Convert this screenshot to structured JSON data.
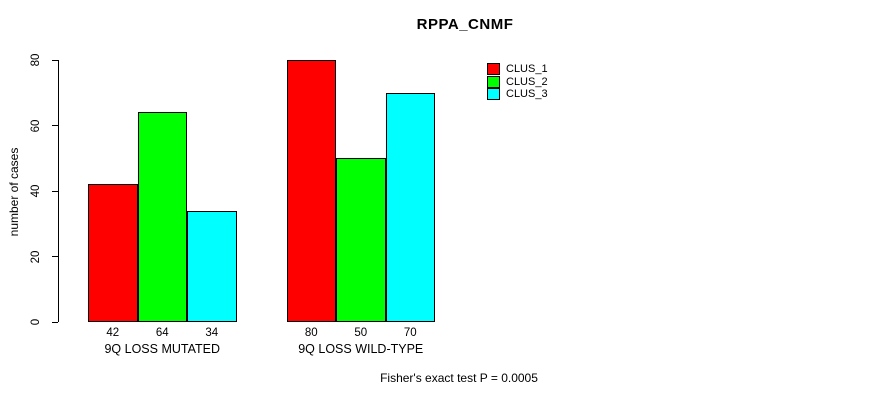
{
  "title": "RPPA_CNMF",
  "y_axis": {
    "label": "number of cases"
  },
  "footer": "Fisher's exact test P = 0.0005",
  "legend": {
    "items": [
      {
        "label": "CLUS_1",
        "color": "#ff0000"
      },
      {
        "label": "CLUS_2",
        "color": "#00ff00"
      },
      {
        "label": "CLUS_3",
        "color": "#00ffff"
      }
    ]
  },
  "chart_data": {
    "type": "bar",
    "title": "RPPA_CNMF",
    "categories": [
      "9Q LOSS MUTATED",
      "9Q LOSS WILD-TYPE"
    ],
    "series": [
      {
        "name": "CLUS_1",
        "color": "#ff0000",
        "values": [
          42,
          80
        ]
      },
      {
        "name": "CLUS_2",
        "color": "#00ff00",
        "values": [
          64,
          50
        ]
      },
      {
        "name": "CLUS_3",
        "color": "#00ffff",
        "values": [
          34,
          70
        ]
      }
    ],
    "bar_value_labels": [
      [
        42,
        64,
        34
      ],
      [
        80,
        50,
        70
      ]
    ],
    "xlabel": "",
    "ylabel": "number of cases",
    "ylim": [
      0,
      80
    ],
    "yticks": [
      0,
      20,
      40,
      60,
      80
    ],
    "grid": false,
    "legend_position": "top-right",
    "annotation": "Fisher's exact test P = 0.0005"
  }
}
